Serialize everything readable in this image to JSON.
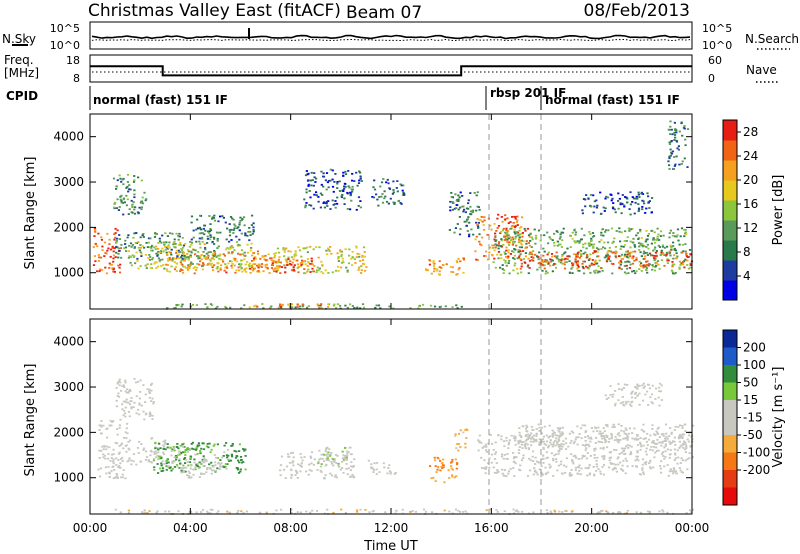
{
  "header": {
    "station": "Christmas Valley East (fitACF)",
    "beam": "Beam 07",
    "date": "08/Feb/2013"
  },
  "strip_labels": {
    "nsky": "N.Sky",
    "nsearch": "N.Search",
    "nsky_ticks": [
      "10^5",
      "10^0"
    ],
    "freq_label": "Freq.",
    "freq_unit": "[MHz]",
    "freq_ticks": [
      "18",
      "8"
    ],
    "nave_label": "Nave",
    "nave_ticks": [
      "60",
      "0"
    ],
    "cpid_label": "CPID"
  },
  "cpid": [
    {
      "label": "normal (fast) 151 IF",
      "start_h": 0
    },
    {
      "label": "rbsp 201 IF",
      "start_h": 15.9
    },
    {
      "label": "normal (fast) 151 IF",
      "start_h": 17.95
    }
  ],
  "colors": {
    "power_scale": [
      "#0000e6",
      "#1e3ca0",
      "#287a4a",
      "#5a9a5a",
      "#8cc63c",
      "#e6c81e",
      "#f5a01e",
      "#f06414",
      "#e61e14"
    ],
    "velocity_scale": [
      "#0a2896",
      "#1e5ac8",
      "#328c3c",
      "#78c83c",
      "#c8c8c0",
      "#c8c8c0",
      "#f5aa3c",
      "#f57814",
      "#e63c14",
      "#e60a0a"
    ]
  },
  "chart_data": [
    {
      "type": "line",
      "name": "noise-strip",
      "ylabel": "N.Sky",
      "ylabel_right": "N.Search",
      "x_range_hours": [
        0,
        24
      ],
      "y_ticks": [
        "10^5",
        "10^0"
      ]
    },
    {
      "type": "line",
      "name": "frequency-strip",
      "ylabel": "Freq. [MHz]",
      "ylabel_right": "Nave",
      "y_ticks_left": [
        18,
        8
      ],
      "y_ticks_right": [
        60,
        0
      ],
      "freq_steps": [
        {
          "x_start": 0,
          "x_end": 2.9,
          "freq": 14
        },
        {
          "x_start": 2.9,
          "x_end": 14.8,
          "freq": 10
        },
        {
          "x_start": 14.8,
          "x_end": 24,
          "freq": 14
        }
      ]
    },
    {
      "type": "heatmap",
      "name": "power-panel",
      "ylabel": "Slant Range [km]",
      "yticks": [
        1000,
        2000,
        3000,
        4000
      ],
      "ylim": [
        200,
        4500
      ],
      "colorbar_label": "Power [dB]",
      "colorbar_ticks": [
        4,
        8,
        12,
        16,
        20,
        24,
        28
      ],
      "clim": [
        0,
        30
      ],
      "regions": [
        {
          "t0": 0.1,
          "t1": 1.2,
          "r0": 1000,
          "r1": 2000,
          "v": 26
        },
        {
          "t0": 0.9,
          "t1": 2.2,
          "r0": 2300,
          "r1": 3200,
          "v": 10
        },
        {
          "t0": 1.0,
          "t1": 5.0,
          "r0": 1300,
          "r1": 1900,
          "v": 10
        },
        {
          "t0": 1.5,
          "t1": 6.5,
          "r0": 1100,
          "r1": 1700,
          "v": 16
        },
        {
          "t0": 3.0,
          "t1": 7.5,
          "r0": 1000,
          "r1": 1500,
          "v": 22
        },
        {
          "t0": 6.3,
          "t1": 7.6,
          "r0": 1000,
          "r1": 1400,
          "v": 24
        },
        {
          "t0": 4.0,
          "t1": 6.5,
          "r0": 1700,
          "r1": 2300,
          "v": 8
        },
        {
          "t0": 8.5,
          "t1": 10.8,
          "r0": 2400,
          "r1": 3300,
          "v": 6
        },
        {
          "t0": 7.3,
          "t1": 11.0,
          "r0": 1000,
          "r1": 1600,
          "v": 18
        },
        {
          "t0": 7.3,
          "t1": 9.0,
          "r0": 1000,
          "r1": 1350,
          "v": 26
        },
        {
          "t0": 11.2,
          "t1": 12.5,
          "r0": 2500,
          "r1": 3100,
          "v": 8
        },
        {
          "t0": 13.3,
          "t1": 14.9,
          "r0": 950,
          "r1": 1350,
          "v": 22
        },
        {
          "t0": 14.3,
          "t1": 15.5,
          "r0": 1800,
          "r1": 2800,
          "v": 8
        },
        {
          "t0": 15.3,
          "t1": 17.5,
          "r0": 1300,
          "r1": 2300,
          "v": 24
        },
        {
          "t0": 16.0,
          "t1": 24.0,
          "r0": 1000,
          "r1": 2000,
          "v": 12
        },
        {
          "t0": 17.0,
          "t1": 24.0,
          "r0": 1100,
          "r1": 1500,
          "v": 26
        },
        {
          "t0": 19.5,
          "t1": 22.5,
          "r0": 2300,
          "r1": 2800,
          "v": 6
        },
        {
          "t0": 23.0,
          "t1": 23.8,
          "r0": 3300,
          "r1": 4400,
          "v": 8
        },
        {
          "t0": 3.0,
          "t1": 15.0,
          "r0": 220,
          "r1": 330,
          "v": 12
        },
        {
          "t0": 6.0,
          "t1": 9.5,
          "r0": 220,
          "r1": 330,
          "v": 22
        }
      ]
    },
    {
      "type": "heatmap",
      "name": "velocity-panel",
      "xlabel": "Time UT",
      "ylabel": "Slant Range [km]",
      "xticks": [
        "00:00",
        "04:00",
        "08:00",
        "12:00",
        "16:00",
        "20:00",
        "00:00"
      ],
      "yticks": [
        1000,
        2000,
        3000,
        4000
      ],
      "ylim": [
        200,
        4500
      ],
      "colorbar_label": "Velocity [m s⁻¹]",
      "colorbar_ticks": [
        200,
        100,
        50,
        15,
        -15,
        -50,
        -100,
        -200
      ],
      "clim": [
        -250,
        250
      ],
      "regions": [
        {
          "t0": 0.3,
          "t1": 1.5,
          "r0": 1000,
          "r1": 2300,
          "v": 0
        },
        {
          "t0": 1.4,
          "t1": 3.0,
          "r0": 1300,
          "r1": 1900,
          "v": 0
        },
        {
          "t0": 1.0,
          "t1": 2.5,
          "r0": 2300,
          "r1": 3200,
          "v": 0
        },
        {
          "t0": 2.5,
          "t1": 6.2,
          "r0": 1100,
          "r1": 1800,
          "v": 120
        },
        {
          "t0": 3.0,
          "t1": 5.5,
          "r0": 1200,
          "r1": 1700,
          "v": 40
        },
        {
          "t0": 3.5,
          "t1": 5.0,
          "r0": 1000,
          "r1": 1300,
          "v": 0
        },
        {
          "t0": 7.5,
          "t1": 10.5,
          "r0": 1000,
          "r1": 1600,
          "v": 0
        },
        {
          "t0": 9.0,
          "t1": 10.5,
          "r0": 1300,
          "r1": 1700,
          "v": 40
        },
        {
          "t0": 11.0,
          "t1": 12.2,
          "r0": 1100,
          "r1": 1400,
          "v": 0
        },
        {
          "t0": 13.5,
          "t1": 14.6,
          "r0": 900,
          "r1": 1500,
          "v": -100
        },
        {
          "t0": 14.5,
          "t1": 15.0,
          "r0": 1600,
          "r1": 2100,
          "v": -60
        },
        {
          "t0": 15.4,
          "t1": 24.0,
          "r0": 1050,
          "r1": 2000,
          "v": 0
        },
        {
          "t0": 17.0,
          "t1": 24.0,
          "r0": 1700,
          "r1": 2200,
          "v": 0
        },
        {
          "t0": 20.5,
          "t1": 22.8,
          "r0": 2600,
          "r1": 3100,
          "v": 0
        },
        {
          "t0": 0.5,
          "t1": 24.0,
          "r0": 220,
          "r1": 320,
          "v": -30
        }
      ]
    }
  ]
}
